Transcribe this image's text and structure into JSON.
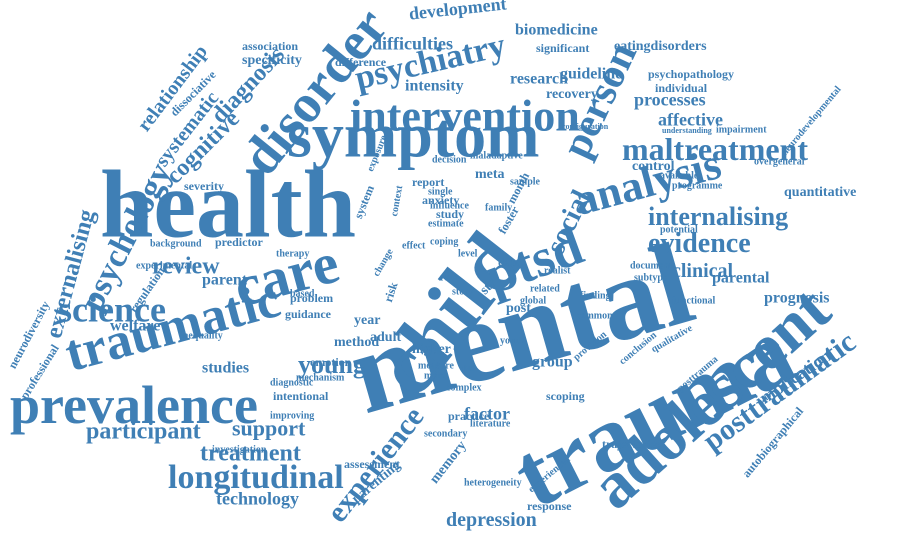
{
  "colors": {
    "word": "#3f7fb5",
    "background": "#ffffff"
  },
  "words": [
    "mental",
    "trauma",
    "health",
    "child",
    "adolescent",
    "symptom",
    "care",
    "disorder",
    "prevalence",
    "traumatic",
    "ptsd",
    "analysis",
    "intervention",
    "person",
    "science",
    "psychiatry",
    "experience",
    "young",
    "longitudinal",
    "maltreatment",
    "psychology",
    "social",
    "internalising",
    "evidence",
    "externalising",
    "posttraumatic",
    "review",
    "treatment",
    "participant",
    "support",
    "cognitive",
    "diagnosis",
    "systematic",
    "depression",
    "technology",
    "development",
    "difficulties",
    "biomedicine",
    "guideline",
    "research",
    "relationship",
    "parent",
    "welfare",
    "studies",
    "method",
    "clinical",
    "implication",
    "prognosis",
    "parental",
    "quantitative",
    "affective",
    "processes",
    "intensity",
    "recovery",
    "psychopathology",
    "individual",
    "eatingdisorders",
    "significant",
    "association",
    "specificity",
    "difference",
    "dissociative",
    "control",
    "impairment",
    "understanding",
    "overgeneral",
    "autobiographical",
    "neurodiversity",
    "professional",
    "regulation",
    "experimental",
    "background",
    "predictor",
    "severity",
    "inequality",
    "guidance",
    "problem",
    "year",
    "adult",
    "post",
    "group",
    "factor",
    "memory",
    "parenting",
    "assessment",
    "response",
    "secondary",
    "practice",
    "literature",
    "scoping",
    "complex",
    "trajectories",
    "heterogeneity",
    "experienced",
    "foster",
    "month",
    "sample",
    "report",
    "study",
    "anxiety",
    "meta",
    "str",
    "pts",
    "higher",
    "emotion",
    "mechanism",
    "diagnostic",
    "intentional",
    "improving",
    "investigation",
    "potential",
    "functional",
    "subtype",
    "document",
    "realist",
    "finding",
    "common",
    "youth",
    "global",
    "related",
    "provision",
    "conclusion",
    "qualitative",
    "posttrauma",
    "available",
    "programme",
    "neurodevelopmental",
    "configuration",
    "decision",
    "maladaptive",
    "exposure",
    "based",
    "therapy",
    "system",
    "context",
    "single",
    "influence",
    "estimate",
    "rate",
    "change",
    "risk",
    "data",
    "family",
    "effect",
    "coping",
    "story",
    "work",
    "measure",
    "more",
    "level"
  ]
}
